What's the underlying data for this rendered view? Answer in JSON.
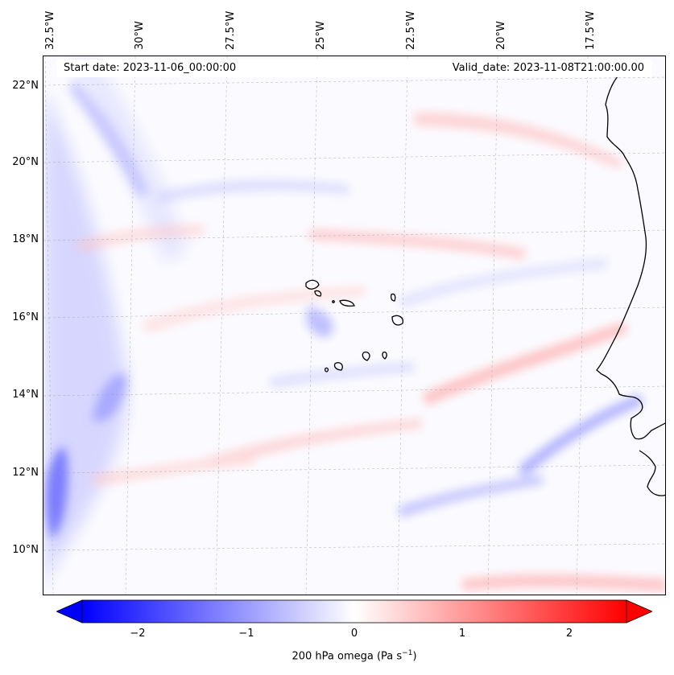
{
  "map": {
    "start_date": "Start date: 2023-11-06_00:00:00",
    "valid_date": "Valid_date: 2023-11-08T21:00:00.00",
    "lon_labels": [
      "32.5°W",
      "30°W",
      "27.5°W",
      "25°W",
      "22.5°W",
      "20°W",
      "17.5°W"
    ],
    "lat_labels": [
      "22°N",
      "20°N",
      "18°N",
      "16°N",
      "14°N",
      "12°N",
      "10°N"
    ],
    "field": "200 hPa omega",
    "colormap": "bwr",
    "colors": {
      "negative": "#0000ff",
      "zero": "#ffffff",
      "positive": "#ff0000",
      "coast": "#000000"
    }
  },
  "colorbar": {
    "label_prefix": "200 hPa omega (Pa s",
    "label_exp": "−1",
    "label_suffix": ")",
    "ticks": [
      "−2",
      "−1",
      "0",
      "1",
      "2"
    ],
    "tick_values": [
      -2,
      -1,
      0,
      1,
      2
    ],
    "vmin": -2.5,
    "vmax": 2.5,
    "extend": "both"
  }
}
